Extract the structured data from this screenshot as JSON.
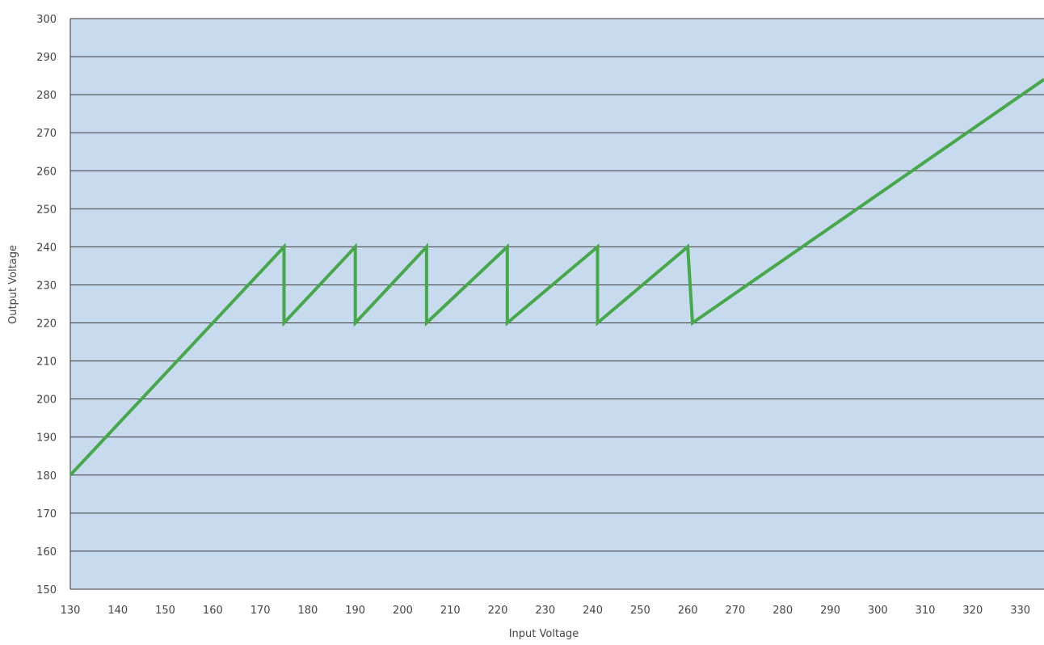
{
  "colors": {
    "plot_background": "#c8daee",
    "gridline": "#3a3a3a",
    "series_line": "#46a84b",
    "tick_text": "#444444"
  },
  "chart_data": {
    "type": "line",
    "title": "",
    "xlabel": "Input Voltage",
    "ylabel": "Output Voltage",
    "xlim": [
      130,
      335
    ],
    "ylim": [
      150,
      300
    ],
    "x_ticks": [
      130,
      140,
      150,
      160,
      170,
      180,
      190,
      200,
      210,
      220,
      230,
      240,
      250,
      260,
      270,
      280,
      290,
      300,
      310,
      320,
      330
    ],
    "y_ticks": [
      150,
      160,
      170,
      180,
      190,
      200,
      210,
      220,
      230,
      240,
      250,
      260,
      270,
      280,
      290,
      300
    ],
    "grid": "horizontal",
    "legend": "none",
    "series": [
      {
        "x": [
          130,
          175,
          175,
          190,
          190,
          205,
          205,
          222,
          222,
          241,
          241,
          260,
          261,
          335
        ],
        "y": [
          180,
          240,
          220,
          240,
          220,
          240,
          220,
          240,
          220,
          240,
          220,
          240,
          220,
          284
        ]
      }
    ]
  }
}
